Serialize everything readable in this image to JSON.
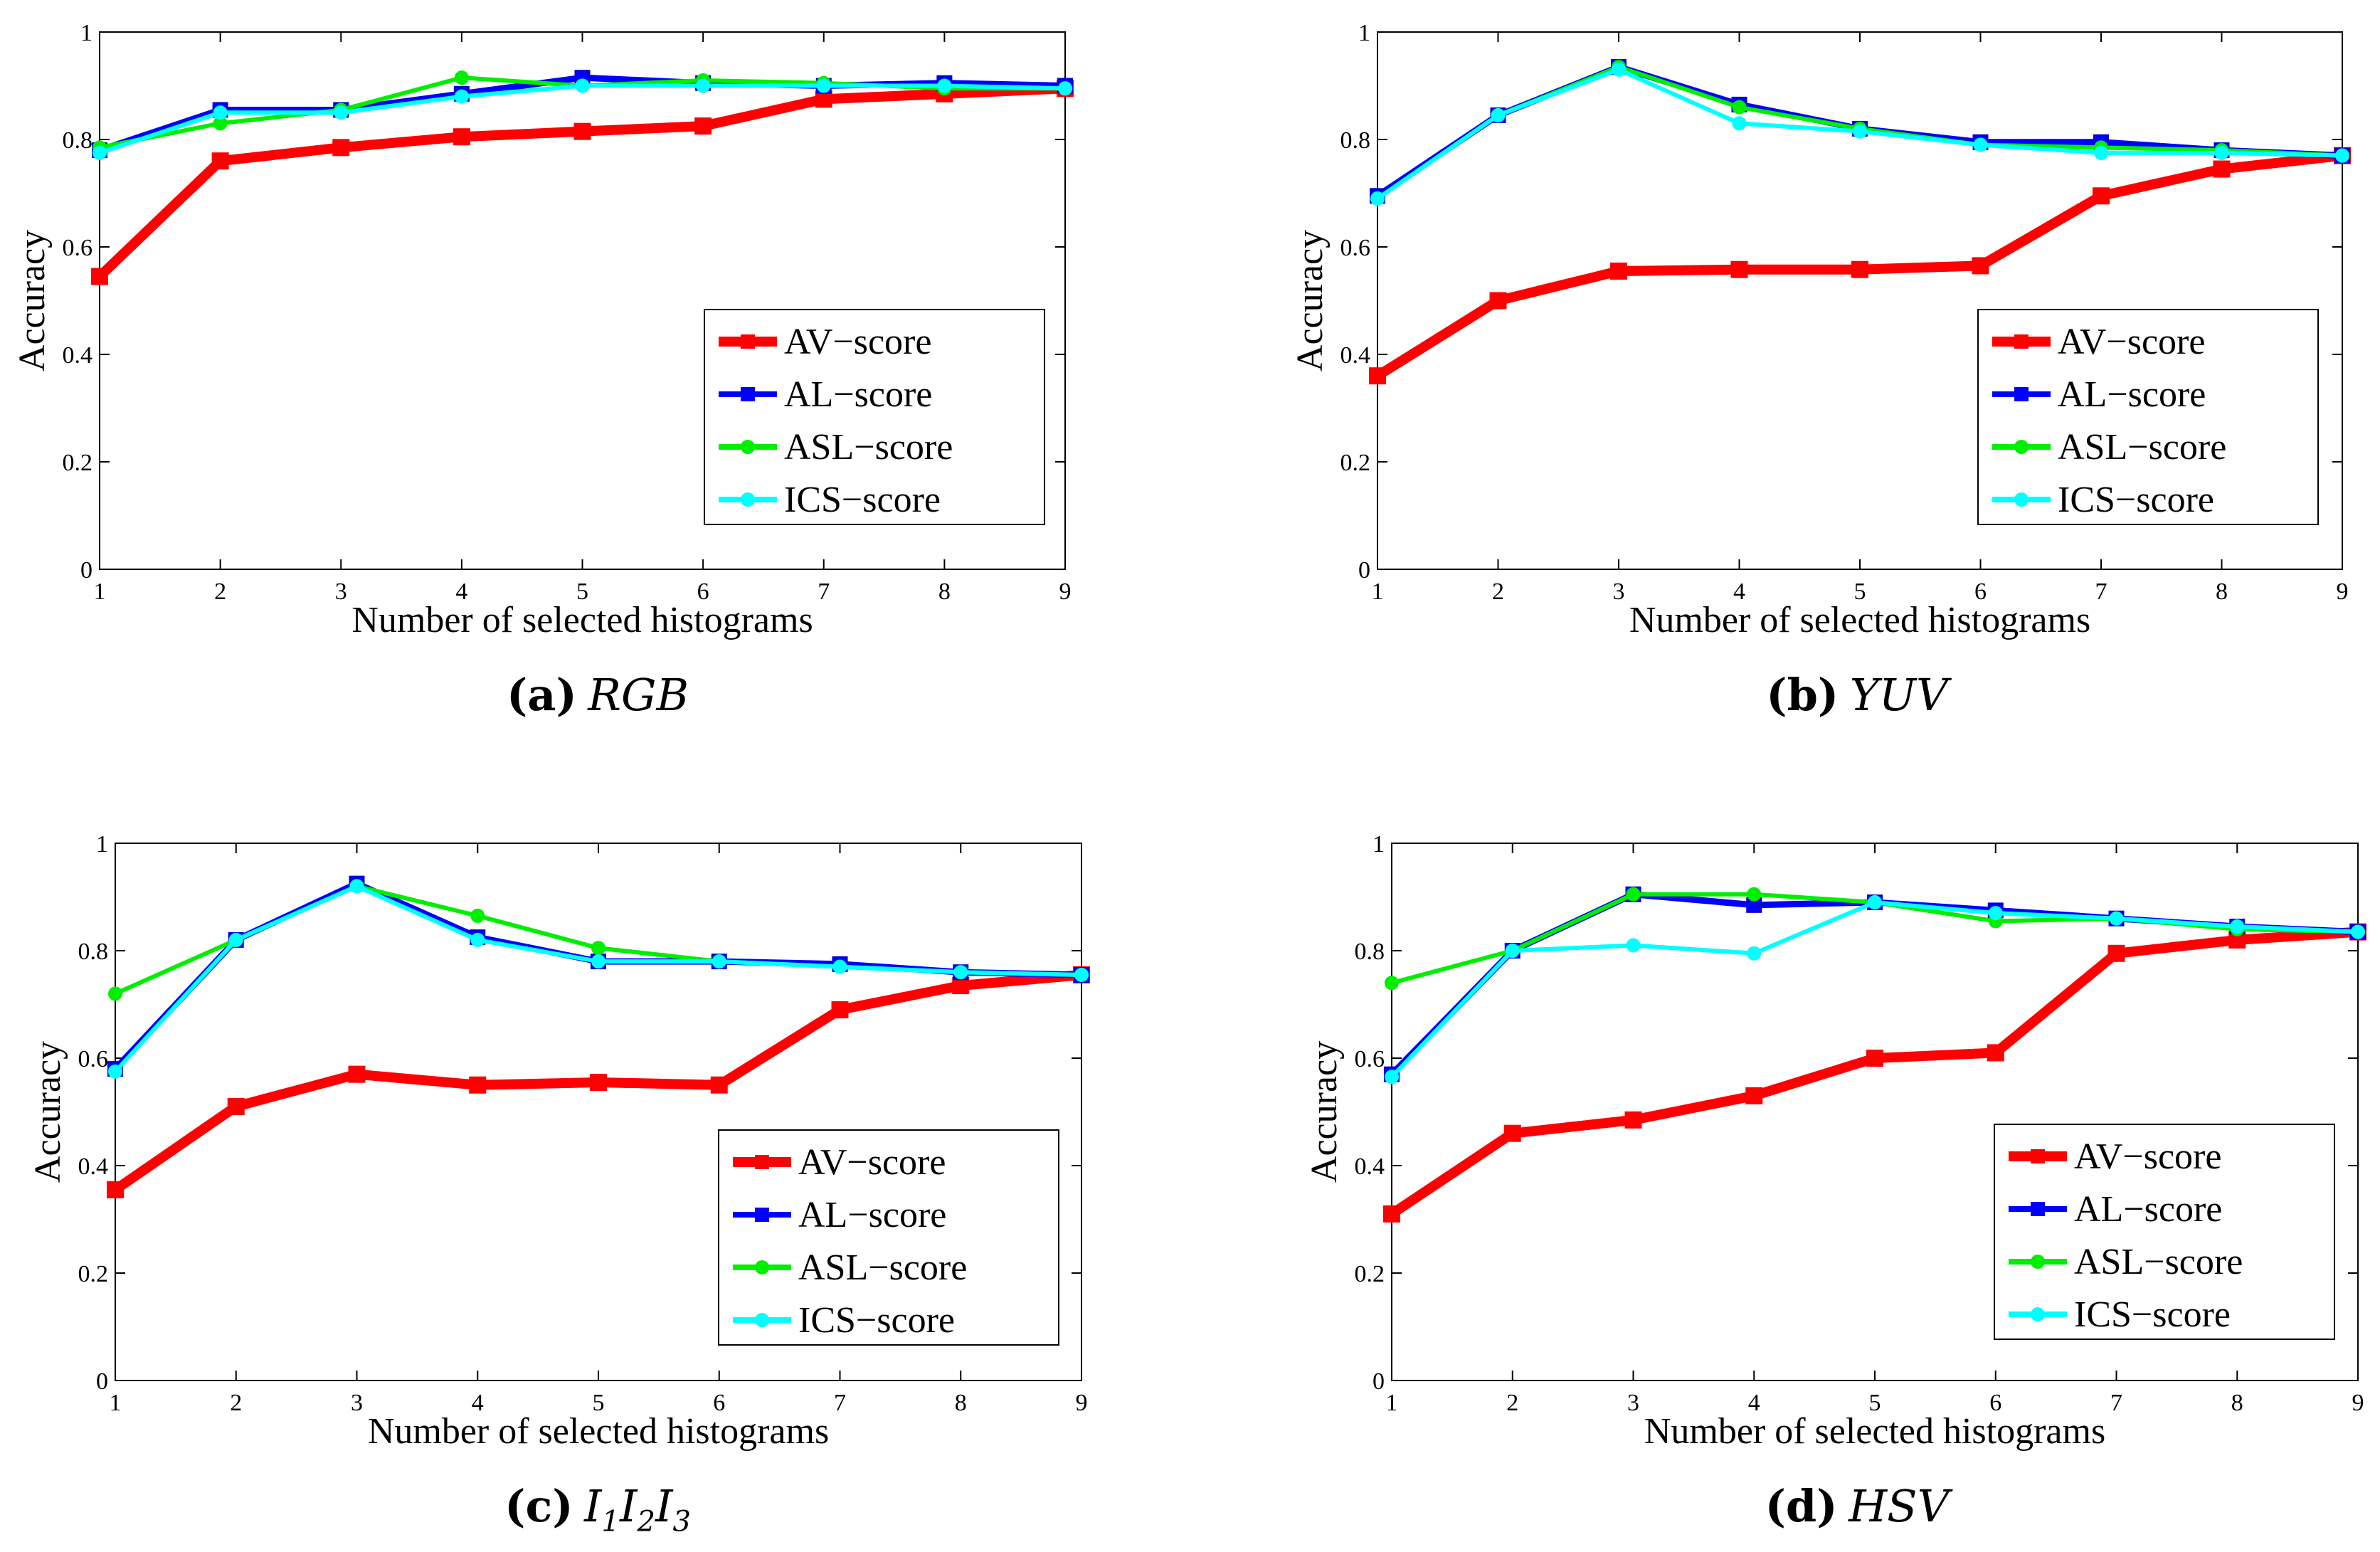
{
  "series_names": [
    "AV−score",
    "AL−score",
    "ASL−score",
    "ICS−score"
  ],
  "series_colors": [
    "#ff0000",
    "#0000ff",
    "#00ee00",
    "#00ffff"
  ],
  "chart_data": [
    {
      "type": "line",
      "panel_label": "(a)",
      "panel_name": "RGB",
      "xlabel": "Number of selected histograms",
      "ylabel": "Accuracy",
      "x": [
        1,
        2,
        3,
        4,
        5,
        6,
        7,
        8,
        9
      ],
      "xlim": [
        1,
        9
      ],
      "ylim": [
        0,
        1
      ],
      "yticks": [
        "0",
        "0.2",
        "0.4",
        "0.6",
        "0.8",
        "1"
      ],
      "xticks": [
        "1",
        "2",
        "3",
        "4",
        "5",
        "6",
        "7",
        "8",
        "9"
      ],
      "legend": "lower-right",
      "series": [
        {
          "name": "AV−score",
          "values": [
            0.545,
            0.76,
            0.785,
            0.805,
            0.815,
            0.825,
            0.875,
            0.885,
            0.895
          ]
        },
        {
          "name": "AL−score",
          "values": [
            0.78,
            0.855,
            0.855,
            0.885,
            0.915,
            0.905,
            0.9,
            0.905,
            0.9
          ]
        },
        {
          "name": "ASL−score",
          "values": [
            0.785,
            0.83,
            0.855,
            0.915,
            0.9,
            0.91,
            0.905,
            0.895,
            0.895
          ]
        },
        {
          "name": "ICS−score",
          "values": [
            0.775,
            0.85,
            0.85,
            0.88,
            0.9,
            0.9,
            0.9,
            0.9,
            0.895
          ]
        }
      ]
    },
    {
      "type": "line",
      "panel_label": "(b)",
      "panel_name": "YUV",
      "xlabel": "Number of selected histograms",
      "ylabel": "Accuracy",
      "x": [
        1,
        2,
        3,
        4,
        5,
        6,
        7,
        8,
        9
      ],
      "xlim": [
        1,
        9
      ],
      "ylim": [
        0,
        1
      ],
      "yticks": [
        "0",
        "0.2",
        "0.4",
        "0.6",
        "0.8",
        "1"
      ],
      "xticks": [
        "1",
        "2",
        "3",
        "4",
        "5",
        "6",
        "7",
        "8",
        "9"
      ],
      "legend": "lower-right",
      "series": [
        {
          "name": "AV−score",
          "values": [
            0.36,
            0.5,
            0.555,
            0.558,
            0.558,
            0.565,
            0.695,
            0.745,
            0.77
          ]
        },
        {
          "name": "AL−score",
          "values": [
            0.695,
            0.845,
            0.935,
            0.865,
            0.82,
            0.795,
            0.795,
            0.78,
            0.77
          ]
        },
        {
          "name": "ASL−score",
          "values": [
            0.69,
            0.845,
            0.935,
            0.86,
            0.82,
            0.79,
            0.785,
            0.78,
            0.77
          ]
        },
        {
          "name": "ICS−score",
          "values": [
            0.69,
            0.845,
            0.93,
            0.83,
            0.815,
            0.79,
            0.775,
            0.775,
            0.77
          ]
        }
      ]
    },
    {
      "type": "line",
      "panel_label": "(c)",
      "panel_name": "I1I2I3",
      "xlabel": "Number of selected histograms",
      "ylabel": "Accuracy",
      "x": [
        1,
        2,
        3,
        4,
        5,
        6,
        7,
        8,
        9
      ],
      "xlim": [
        1,
        9
      ],
      "ylim": [
        0,
        1
      ],
      "yticks": [
        "0",
        "0.2",
        "0.4",
        "0.6",
        "0.8",
        "1"
      ],
      "xticks": [
        "1",
        "2",
        "3",
        "4",
        "5",
        "6",
        "7",
        "8",
        "9"
      ],
      "legend": "lower-right",
      "series": [
        {
          "name": "AV−score",
          "values": [
            0.355,
            0.51,
            0.57,
            0.55,
            0.555,
            0.55,
            0.69,
            0.735,
            0.755
          ]
        },
        {
          "name": "AL−score",
          "values": [
            0.58,
            0.82,
            0.925,
            0.825,
            0.78,
            0.78,
            0.775,
            0.76,
            0.755
          ]
        },
        {
          "name": "ASL−score",
          "values": [
            0.72,
            0.82,
            0.92,
            0.865,
            0.805,
            0.78,
            0.77,
            0.76,
            0.755
          ]
        },
        {
          "name": "ICS−score",
          "values": [
            0.575,
            0.82,
            0.92,
            0.82,
            0.78,
            0.78,
            0.77,
            0.76,
            0.755
          ]
        }
      ]
    },
    {
      "type": "line",
      "panel_label": "(d)",
      "panel_name": "HSV",
      "xlabel": "Number of selected histograms",
      "ylabel": "Accuracy",
      "x": [
        1,
        2,
        3,
        4,
        5,
        6,
        7,
        8,
        9
      ],
      "xlim": [
        1,
        9
      ],
      "ylim": [
        0,
        1
      ],
      "yticks": [
        "0",
        "0.2",
        "0.4",
        "0.6",
        "0.8",
        "1"
      ],
      "xticks": [
        "1",
        "2",
        "3",
        "4",
        "5",
        "6",
        "7",
        "8",
        "9"
      ],
      "legend": "lower-right",
      "series": [
        {
          "name": "AV−score",
          "values": [
            0.31,
            0.46,
            0.485,
            0.53,
            0.6,
            0.61,
            0.795,
            0.82,
            0.835
          ]
        },
        {
          "name": "AL−score",
          "values": [
            0.57,
            0.8,
            0.905,
            0.885,
            0.89,
            0.875,
            0.86,
            0.845,
            0.835
          ]
        },
        {
          "name": "ASL−score",
          "values": [
            0.74,
            0.8,
            0.905,
            0.905,
            0.89,
            0.855,
            0.86,
            0.84,
            0.835
          ]
        },
        {
          "name": "ICS−score",
          "values": [
            0.565,
            0.8,
            0.81,
            0.795,
            0.89,
            0.87,
            0.86,
            0.845,
            0.835
          ]
        }
      ]
    }
  ]
}
